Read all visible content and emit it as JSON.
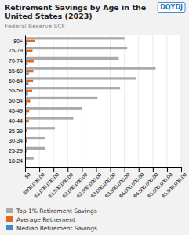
{
  "chart_data": {
    "type": "bar",
    "orientation": "horizontal",
    "title": "Retirement Savings by Age in the United States (2023)",
    "subtitle": "Federal Reserve SCF",
    "annotations": [
      "DQYDJ"
    ],
    "categories": [
      "18-24",
      "25-29",
      "30-34",
      "35-39",
      "40-44",
      "45-49",
      "50-54",
      "55-59",
      "60-64",
      "65-69",
      "70-74",
      "75-79",
      "80+"
    ],
    "series": [
      {
        "name": "Top 1% Retirement Savings",
        "color": "#aaaaaa",
        "values": [
          300000,
          720000,
          700000,
          1050000,
          1700000,
          2000000,
          2550000,
          3350000,
          3900000,
          4600000,
          3300000,
          3600000,
          3500000
        ]
      },
      {
        "name": "Average Retirement",
        "color": "#e06820",
        "values": [
          18000,
          50000,
          55000,
          75000,
          130000,
          145000,
          180000,
          250000,
          280000,
          290000,
          300000,
          260000,
          334000
        ]
      },
      {
        "name": "Median Retirement Savings",
        "color": "#4488cc",
        "values": [
          2000,
          7000,
          8000,
          18000,
          35000,
          45000,
          60000,
          100000,
          120000,
          130000,
          90000,
          72000,
          87000
        ]
      }
    ],
    "xlim": [
      0,
      5500000
    ],
    "xticks": [
      {
        "value": 0,
        "label": "$0"
      },
      {
        "value": 500000,
        "label": "$500,000.00"
      },
      {
        "value": 1000000,
        "label": "$1,000,000.00"
      },
      {
        "value": 1500000,
        "label": "$1,500,000.00"
      },
      {
        "value": 2000000,
        "label": "$2,000,000.00"
      },
      {
        "value": 2500000,
        "label": "$2,500,000.00"
      },
      {
        "value": 3000000,
        "label": "$3,000,000.00"
      },
      {
        "value": 3500000,
        "label": "$3,500,000.00"
      },
      {
        "value": 4000000,
        "label": "$4,000,000.00"
      },
      {
        "value": 4500000,
        "label": "$4,500,000.00"
      },
      {
        "value": 5000000,
        "label": "$5,000,000.00"
      },
      {
        "value": 5500000,
        "label": "$5,500,000.00"
      }
    ],
    "grid": true,
    "legend": "bottom"
  }
}
